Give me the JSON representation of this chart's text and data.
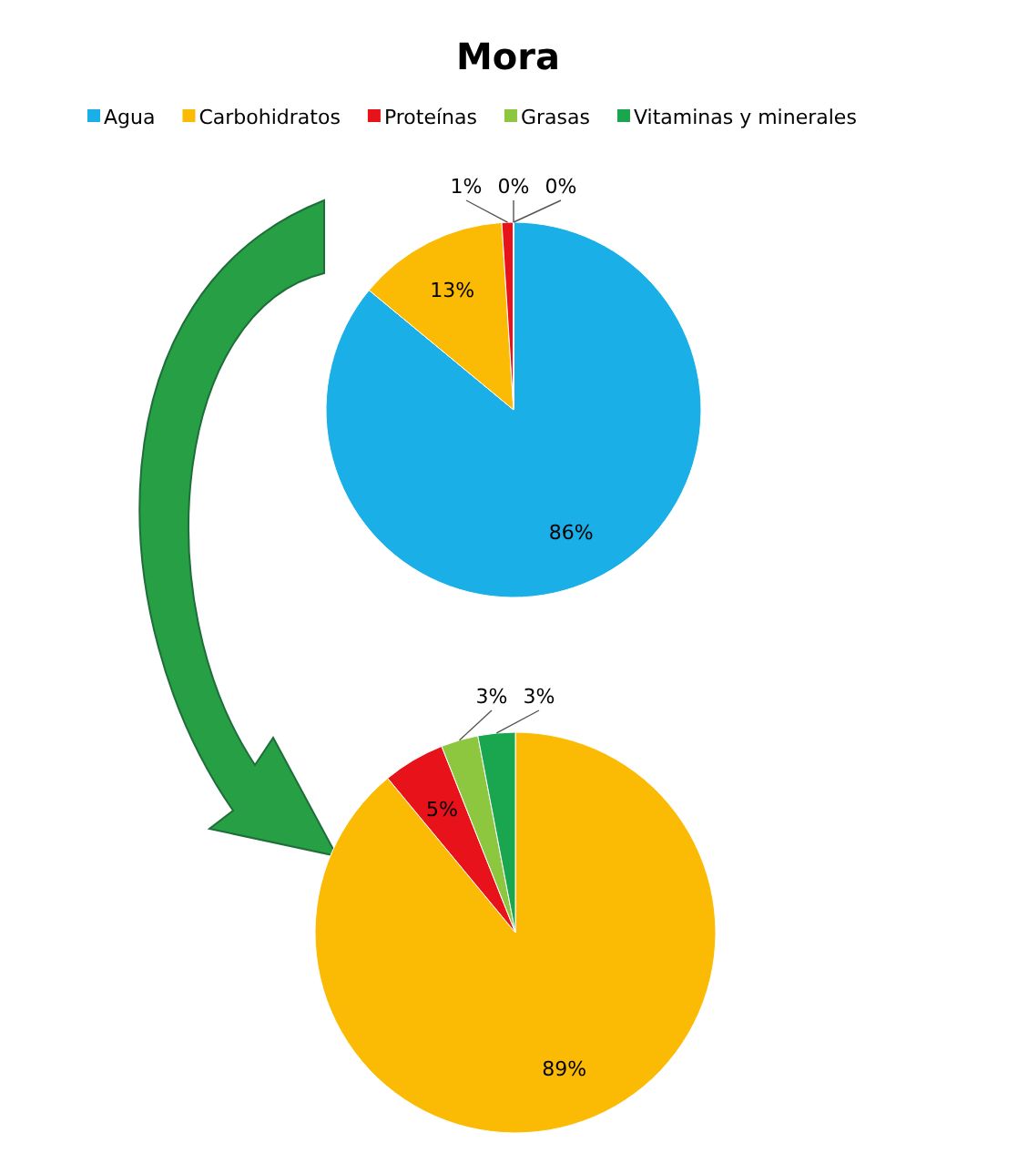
{
  "chart_data": [
    {
      "type": "pie",
      "title": "Mora",
      "categories": [
        "Agua",
        "Carbohidratos",
        "Proteínas",
        "Grasas",
        "Vitaminas y minerales"
      ],
      "values": [
        86,
        13,
        1,
        0,
        0
      ],
      "value_labels": [
        "86%",
        "13%",
        "1%",
        "0%",
        "0%"
      ],
      "colors": [
        "#1aafe6",
        "#fbbb05",
        "#e8121a",
        "#8dc63f",
        "#1aa54f"
      ],
      "legend": "top"
    },
    {
      "type": "pie",
      "categories": [
        null,
        null,
        null,
        null
      ],
      "values": [
        89,
        5,
        3,
        3
      ],
      "value_labels": [
        "89%",
        "5%",
        "3%",
        "3%"
      ],
      "colors": [
        "#fbbb05",
        "#e8121a",
        "#8dc63f",
        "#1aa54f"
      ]
    }
  ]
}
